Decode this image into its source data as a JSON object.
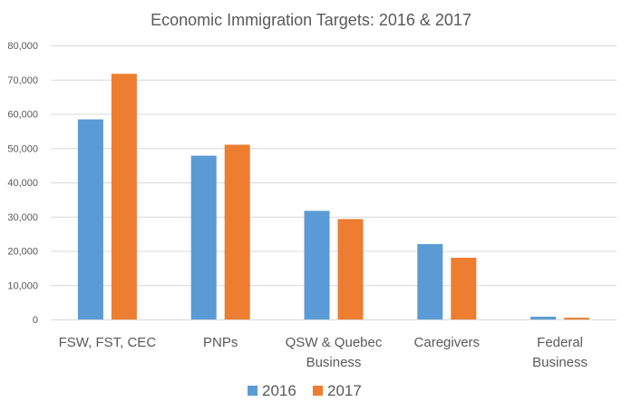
{
  "chart_data": {
    "type": "bar",
    "title": "Economic Immigration Targets: 2016 & 2017",
    "categories": [
      [
        "FSW, FST, CEC"
      ],
      [
        "PNPs"
      ],
      [
        "QSW & Quebec",
        "Business"
      ],
      [
        "Caregivers"
      ],
      [
        "Federal",
        "Business"
      ]
    ],
    "series": [
      {
        "name": "2016",
        "color": "#5b9bd5",
        "values": [
          58400,
          47800,
          31700,
          22000,
          800
        ]
      },
      {
        "name": "2017",
        "color": "#ed7d31",
        "values": [
          71700,
          51000,
          29300,
          18000,
          500
        ]
      }
    ],
    "yticks": [
      "0",
      "10,000",
      "20,000",
      "30,000",
      "40,000",
      "50,000",
      "60,000",
      "70,000",
      "80,000"
    ],
    "ylim": [
      0,
      80000
    ],
    "grid": true,
    "legend": "bottom-center"
  }
}
